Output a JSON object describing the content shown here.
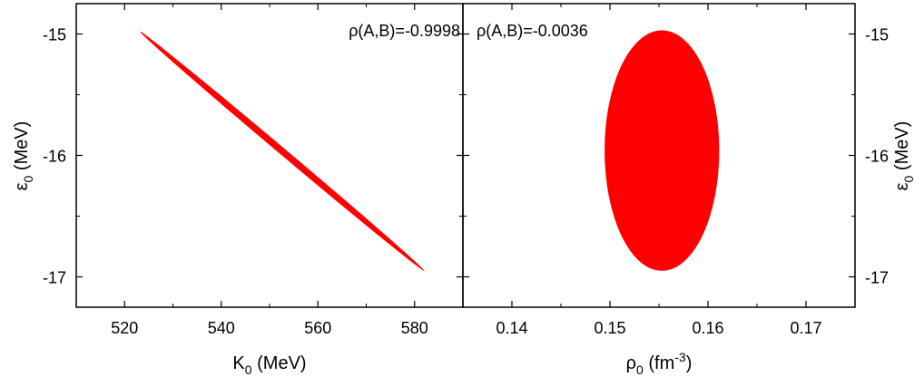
{
  "chart_data": [
    {
      "type": "scatter",
      "panel": "left",
      "xlabel": {
        "main": "K",
        "sub": "0",
        "unit": " (MeV)"
      },
      "ylabel": {
        "main": "ε",
        "sub": "0",
        "unit": " (MeV)"
      },
      "xlim": [
        510,
        590
      ],
      "ylim": [
        -17.25,
        -14.75
      ],
      "xticks": [
        520,
        540,
        560,
        580
      ],
      "yticks": [
        -15,
        -16,
        -17
      ],
      "annotation": "ρ(A,B)=-0.9998",
      "series": [
        {
          "shape": "ellipse",
          "center": {
            "x": 552.6,
            "y": -15.96
          },
          "endpoints": [
            {
              "x": 523.2,
              "y": -14.98
            },
            {
              "x": 582.0,
              "y": -16.95
            }
          ],
          "half_width": 0.028,
          "color": "#ff0000"
        }
      ]
    },
    {
      "type": "scatter",
      "panel": "right",
      "xlabel": {
        "main": "ρ",
        "sub": "0",
        "unit": " (fm",
        "sup": "-3",
        "close": ")"
      },
      "ylabel": {
        "main": "ε",
        "sub": "0",
        "unit": " (MeV)"
      },
      "xlim": [
        0.135,
        0.175
      ],
      "ylim": [
        -17.25,
        -14.75
      ],
      "xticks": [
        0.14,
        0.15,
        0.16,
        0.17
      ],
      "yticks": [
        -15,
        -16,
        -17
      ],
      "annotation": "ρ(A,B)=-0.0036",
      "series": [
        {
          "shape": "ellipse",
          "center": {
            "x": 0.1553,
            "y": -15.96
          },
          "radius_x": 0.00585,
          "radius_y": 0.99,
          "color": "#ff0000"
        }
      ]
    }
  ]
}
